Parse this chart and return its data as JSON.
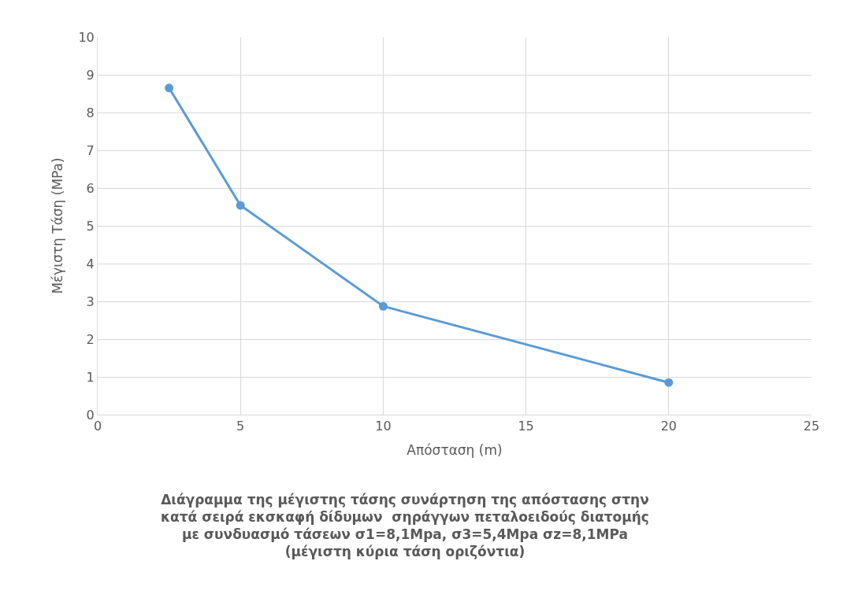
{
  "chart_data": {
    "type": "line",
    "title": "Διάγραμμα της μέγιστης τάσης συνάρτηση της απόστασης στην\nκατά σειρά εκσκαφή δίδυμων  σηράγγων πεταλοειδούς διατομής\nμε συνδυασμό τάσεων σ1=8,1Mpa, σ3=5,4Mpa σz=8,1MPa\n(μέγιστη κύρια τάση οριζόντια)",
    "xlabel": "Απόσταση (m)",
    "ylabel": "Μέγιστη Τάση (MPa)",
    "x": [
      2.5,
      5,
      10,
      20
    ],
    "series": [
      {
        "color": "#5b9bd5",
        "values": [
          8.65,
          5.54,
          2.87,
          0.85
        ]
      }
    ],
    "xlim": [
      0,
      25
    ],
    "xticks": [
      0,
      5,
      10,
      15,
      20,
      25
    ],
    "ylim": [
      0,
      10
    ],
    "yticks": [
      0,
      1,
      2,
      3,
      4,
      5,
      6,
      7,
      8,
      9,
      10
    ],
    "grid": true,
    "marker": "circle",
    "line_style": "solid"
  }
}
